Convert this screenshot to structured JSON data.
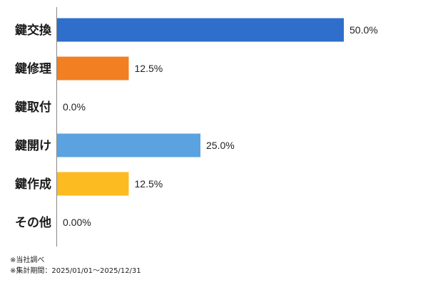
{
  "chart_data": {
    "type": "bar",
    "orientation": "horizontal",
    "categories": [
      "鍵交換",
      "鍵修理",
      "鍵取付",
      "鍵開け",
      "鍵作成",
      "その他"
    ],
    "values": [
      50.0,
      12.5,
      0.0,
      25.0,
      12.5,
      0.0
    ],
    "value_labels": [
      "50.0%",
      "12.5%",
      "0.0%",
      "25.0%",
      "12.5%",
      "0.00%"
    ],
    "colors": [
      "#2f6fcb",
      "#f27f22",
      "#4a90d9",
      "#5ba3e0",
      "#fdbb22",
      "#999999"
    ],
    "xlim": [
      0,
      50
    ],
    "grid": false,
    "legend": "none",
    "title": "",
    "xlabel": "",
    "ylabel": ""
  },
  "notes": {
    "source": "※当社調べ",
    "period": "※集計期間：2025/01/01～2025/12/31"
  }
}
